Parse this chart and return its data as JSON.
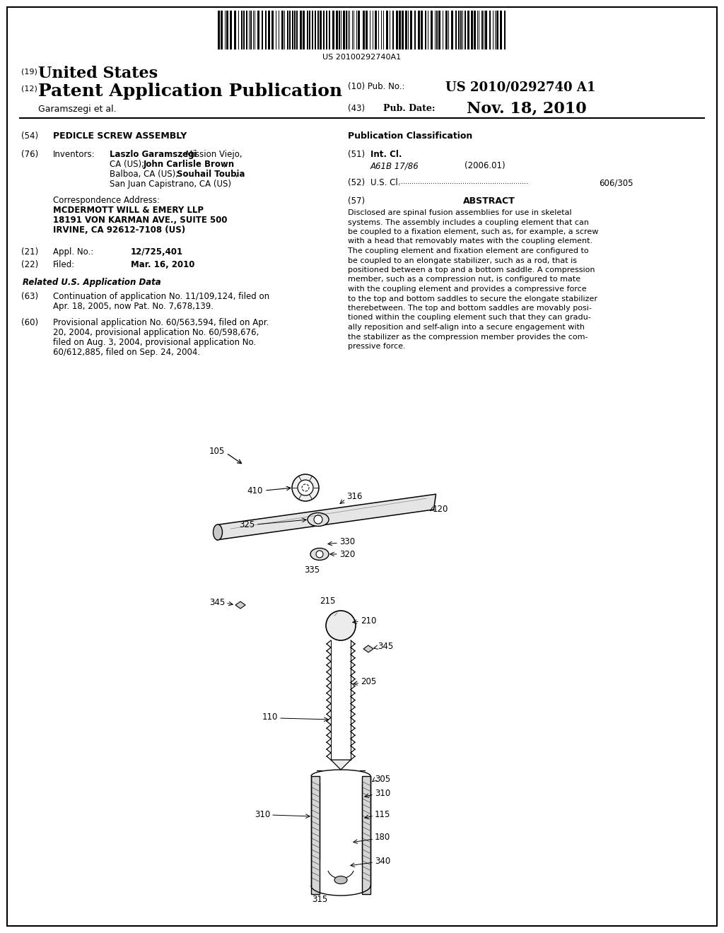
{
  "bg_color": "#ffffff",
  "barcode_text": "US 20100292740A1",
  "patent_number": "US 2010/0292740 A1",
  "pub_date_label": "Pub. Date:",
  "pub_date": "Nov. 18, 2010",
  "country": "United States",
  "kind_19": "(19)",
  "kind_12": "(12)",
  "pub_type": "Patent Application Publication",
  "pub_no_label": "(10) Pub. No.:",
  "author": "Garamszegi et al.",
  "author_num": "(43)",
  "title_num": "(54)",
  "title": "PEDICLE SCREW ASSEMBLY",
  "inventors_num": "(76)",
  "inventors_label": "Inventors:",
  "corr_label": "Correspondence Address:",
  "corr_line1": "MCDERMOTT WILL & EMERY LLP",
  "corr_line2": "18191 VON KARMAN AVE., SUITE 500",
  "corr_line3": "IRVINE, CA 92612-7108 (US)",
  "appl_num": "12/725,401",
  "filed_date": "Mar. 16, 2010",
  "related_header": "Related U.S. Application Data",
  "continuation_num": "(63)",
  "continuation_line1": "Continuation of application No. 11/109,124, filed on",
  "continuation_line2": "Apr. 18, 2005, now Pat. No. 7,678,139.",
  "provisional_num": "(60)",
  "provisional_line1": "Provisional application No. 60/563,594, filed on Apr.",
  "provisional_line2": "20, 2004, provisional application No. 60/598,676,",
  "provisional_line3": "filed on Aug. 3, 2004, provisional application No.",
  "provisional_line4": "60/612,885, filed on Sep. 24, 2004.",
  "pub_class_header": "Publication Classification",
  "int_cl_num": "(51)",
  "int_cl_label": "Int. Cl.",
  "int_cl_value": "A61B 17/86",
  "int_cl_year": "(2006.01)",
  "us_cl_num": "(52)",
  "us_cl_label": "U.S. Cl.",
  "us_cl_dots": ".............................................................",
  "us_cl_value": "606/305",
  "abstract_num": "(57)",
  "abstract_header": "ABSTRACT",
  "abstract_line1": "Disclosed are spinal fusion assemblies for use in skeletal",
  "abstract_line2": "systems. The assembly includes a coupling element that can",
  "abstract_line3": "be coupled to a fixation element, such as, for example, a screw",
  "abstract_line4": "with a head that removably mates with the coupling element.",
  "abstract_line5": "The coupling element and fixation element are configured to",
  "abstract_line6": "be coupled to an elongate stabilizer, such as a rod, that is",
  "abstract_line7": "positioned between a top and a bottom saddle. A compression",
  "abstract_line8": "member, such as a compression nut, is configured to mate",
  "abstract_line9": "with the coupling element and provides a compressive force",
  "abstract_line10": "to the top and bottom saddles to secure the elongate stabilizer",
  "abstract_line11": "therebetween. The top and bottom saddles are movably posi-",
  "abstract_line12": "tioned within the coupling element such that they can gradu-",
  "abstract_line13": "ally reposition and self-align into a secure engagement with",
  "abstract_line14": "the stabilizer as the compression member provides the com-",
  "abstract_line15": "pressive force."
}
